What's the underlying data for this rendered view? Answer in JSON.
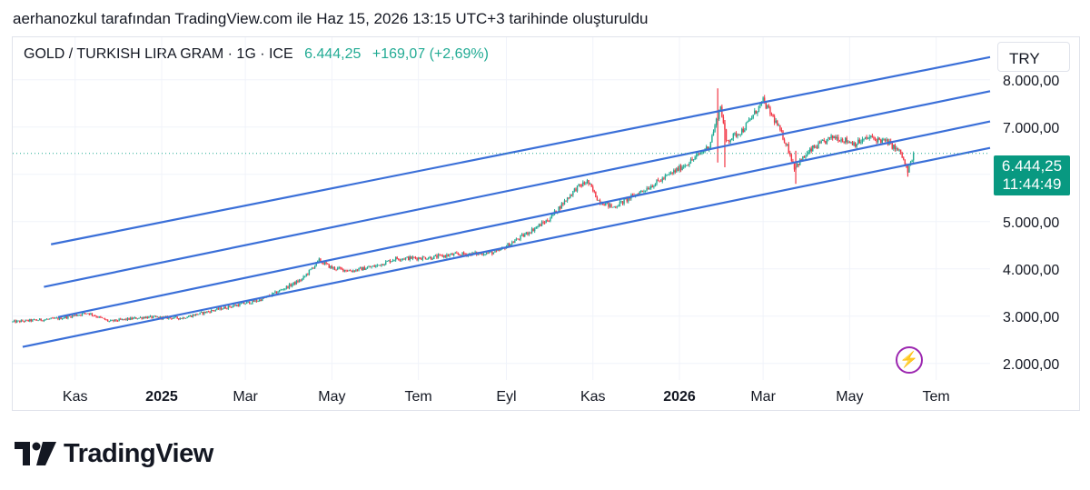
{
  "caption": "aerhanozkul tarafından TradingView.com ile Haz 15, 2026 13:15 UTC+3 tarihinde oluşturuldu",
  "legend": {
    "symbol": "GOLD / TURKISH LIRA GRAM · 1G · ICE",
    "value": "6.444,25",
    "change": "+169,07 (+2,69%)"
  },
  "currency_label": "TRY",
  "price_tag": {
    "price": "6.444,25",
    "countdown": "11:44:49"
  },
  "brand": {
    "name": "TradingView",
    "logo_icon": "tradingview-logo-icon"
  },
  "lightning_icon": "lightning-bolt-icon",
  "colors": {
    "up": "#22ab94",
    "down": "#f23645",
    "channel": "#3a6fd8",
    "price_line": "#22ab94",
    "tag": "#089981",
    "bolt": "#9c27b0"
  },
  "chart_data": {
    "type": "candlestick",
    "title": "GOLD / TURKISH LIRA GRAM · 1G · ICE",
    "y_axis_position": "right",
    "yticks": [
      2000,
      3000,
      4000,
      5000,
      6000,
      7000,
      8000
    ],
    "ytick_labels": [
      "2.000,00",
      "3.000,00",
      "4.000,00",
      "5.000,00",
      "",
      "7.000,00",
      "8.000,00"
    ],
    "ylim": [
      1650,
      8900
    ],
    "xlim": [
      "2024-09-18",
      "2026-08-08"
    ],
    "xticks": [
      {
        "date": "2024-11-01",
        "label": "Kas",
        "bold": false
      },
      {
        "date": "2025-01-01",
        "label": "2025",
        "bold": true
      },
      {
        "date": "2025-03-01",
        "label": "Mar",
        "bold": false
      },
      {
        "date": "2025-05-01",
        "label": "May",
        "bold": false
      },
      {
        "date": "2025-07-01",
        "label": "Tem",
        "bold": false
      },
      {
        "date": "2025-09-01",
        "label": "Eyl",
        "bold": false
      },
      {
        "date": "2025-11-01",
        "label": "Kas",
        "bold": false
      },
      {
        "date": "2026-01-01",
        "label": "2026",
        "bold": true
      },
      {
        "date": "2026-03-01",
        "label": "Mar",
        "bold": false
      },
      {
        "date": "2026-05-01",
        "label": "May",
        "bold": false
      },
      {
        "date": "2026-07-01",
        "label": "Tem",
        "bold": false
      }
    ],
    "last_price": 6444.25,
    "price_key_points": [
      [
        "2024-09-18",
        2880
      ],
      [
        "2024-10-20",
        2950
      ],
      [
        "2024-11-10",
        3070
      ],
      [
        "2024-11-25",
        2890
      ],
      [
        "2024-12-20",
        2980
      ],
      [
        "2025-01-15",
        2960
      ],
      [
        "2025-02-10",
        3150
      ],
      [
        "2025-03-10",
        3330
      ],
      [
        "2025-03-20",
        3460
      ],
      [
        "2025-04-10",
        3780
      ],
      [
        "2025-04-22",
        4180
      ],
      [
        "2025-05-01",
        4020
      ],
      [
        "2025-05-15",
        3960
      ],
      [
        "2025-06-01",
        4060
      ],
      [
        "2025-06-15",
        4220
      ],
      [
        "2025-07-10",
        4240
      ],
      [
        "2025-07-25",
        4300
      ],
      [
        "2025-08-15",
        4330
      ],
      [
        "2025-08-25",
        4350
      ],
      [
        "2025-09-10",
        4650
      ],
      [
        "2025-10-01",
        5050
      ],
      [
        "2025-10-20",
        5700
      ],
      [
        "2025-10-28",
        5850
      ],
      [
        "2025-11-05",
        5450
      ],
      [
        "2025-11-15",
        5300
      ],
      [
        "2025-11-30",
        5550
      ],
      [
        "2025-12-20",
        5900
      ],
      [
        "2026-01-10",
        6300
      ],
      [
        "2026-01-22",
        6600
      ],
      [
        "2026-01-30",
        7450
      ],
      [
        "2026-02-03",
        6700
      ],
      [
        "2026-02-15",
        6950
      ],
      [
        "2026-03-01",
        7550
      ],
      [
        "2026-03-10",
        7100
      ],
      [
        "2026-03-18",
        6600
      ],
      [
        "2026-03-23",
        6150
      ],
      [
        "2026-04-05",
        6550
      ],
      [
        "2026-04-20",
        6800
      ],
      [
        "2026-05-05",
        6650
      ],
      [
        "2026-05-15",
        6780
      ],
      [
        "2026-05-28",
        6680
      ],
      [
        "2026-06-06",
        6450
      ],
      [
        "2026-06-11",
        6050
      ],
      [
        "2026-06-15",
        6444
      ]
    ],
    "channel_lines": [
      {
        "name": "",
        "start": [
          "2024-10-15",
          4520
        ],
        "end": [
          "2026-08-08",
          8480
        ]
      },
      {
        "name": "",
        "start": [
          "2024-10-10",
          3620
        ],
        "end": [
          "2026-08-08",
          7760
        ]
      },
      {
        "name": "",
        "start": [
          "2024-10-20",
          2980
        ],
        "end": [
          "2026-08-08",
          7120
        ]
      },
      {
        "name": "",
        "start": [
          "2024-09-25",
          2350
        ],
        "end": [
          "2026-08-08",
          6560
        ]
      }
    ],
    "grid": true,
    "legend_position": "top-left"
  }
}
